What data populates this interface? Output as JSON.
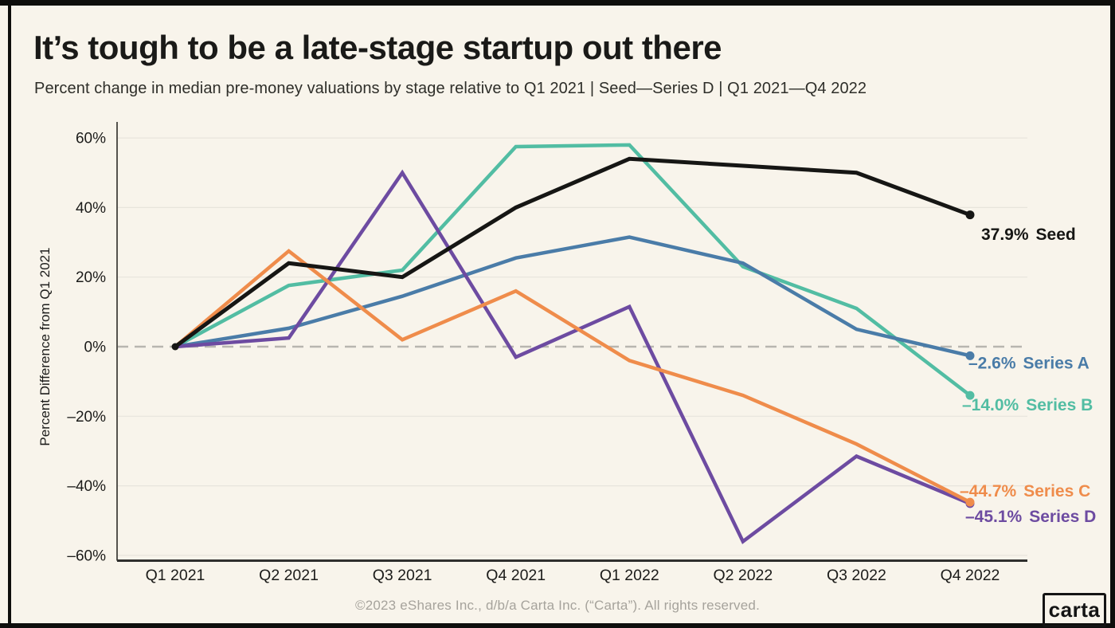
{
  "header": {
    "title": "It’s tough to be a late-stage startup out there",
    "subtitle": "Percent change in median pre-money valuations by stage relative to Q1 2021 | Seed—Series D | Q1 2021—Q4 2022"
  },
  "chart_data": {
    "type": "line",
    "categories": [
      "Q1 2021",
      "Q2 2021",
      "Q3 2021",
      "Q4 2021",
      "Q1 2022",
      "Q2 2022",
      "Q3 2022",
      "Q4 2022"
    ],
    "ylabel": "Percent Difference from Q1 2021",
    "ylim": [
      -65,
      65
    ],
    "grid": true,
    "zero_line_style": "dashed",
    "legend_position": "end-of-line-labels",
    "y_ticks": [
      {
        "value": 60,
        "label": "60%"
      },
      {
        "value": 40,
        "label": "40%"
      },
      {
        "value": 20,
        "label": "20%"
      },
      {
        "value": 0,
        "label": "0%"
      },
      {
        "value": -20,
        "label": "–20%"
      },
      {
        "value": -40,
        "label": "–40%"
      },
      {
        "value": -60,
        "label": "–60%"
      }
    ],
    "series": [
      {
        "name": "Series B",
        "color": "#52bda3",
        "end_label": "–14.0%",
        "values": [
          0,
          17.6,
          22,
          57.5,
          58,
          23,
          11,
          -14.0
        ]
      },
      {
        "name": "Series A",
        "color": "#4a7ca8",
        "end_label": "–2.6%",
        "values": [
          0,
          5.3,
          14.5,
          25.5,
          31.5,
          24,
          5,
          -2.6
        ]
      },
      {
        "name": "Series D",
        "color": "#6d4ba1",
        "end_label": "–45.1%",
        "values": [
          0,
          2.5,
          50,
          -3,
          11.5,
          -56,
          -31.5,
          -45.1
        ]
      },
      {
        "name": "Series C",
        "color": "#ef8c4b",
        "end_label": "–44.7%",
        "values": [
          0,
          27.5,
          2,
          16,
          -4,
          -14,
          -28,
          -44.7
        ]
      },
      {
        "name": "Seed",
        "color": "#161614",
        "end_label": "37.9%",
        "values": [
          0,
          24,
          20,
          40,
          54,
          52,
          50,
          37.9
        ]
      }
    ]
  },
  "footer": {
    "copyright": "©2023 eShares Inc., d/b/a Carta Inc. (“Carta”). All rights reserved.",
    "logo_text": "carta"
  }
}
